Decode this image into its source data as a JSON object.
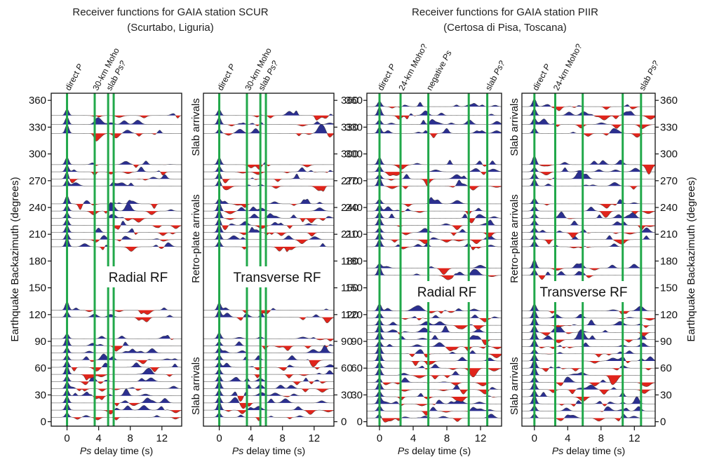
{
  "chart_data": [
    {
      "type": "area",
      "id": "scur-radial",
      "station_title": [
        "Receiver functions for GAIA station SCUR",
        "(Scurtabo, Liguria)"
      ],
      "component_label": "Radial RF",
      "xlabel": "delay time (s)",
      "xlabel_italic": "Ps",
      "ylabel": "Earthquake Backazimuth (degrees)",
      "xlim": [
        -2,
        14.5
      ],
      "ylim": [
        -5,
        368
      ],
      "xticks": [
        0,
        4,
        8,
        12
      ],
      "yticks": [
        0,
        30,
        60,
        90,
        120,
        150,
        180,
        210,
        240,
        270,
        300,
        330,
        360
      ],
      "marker_lines": [
        {
          "label_italic": "",
          "label": "direct ",
          "label_italic_after": "P",
          "x": 0
        },
        {
          "label_italic": "",
          "label": "30-km Moho",
          "label_italic_after": "",
          "x": 3.5
        },
        {
          "label_italic": "",
          "label": "slab ",
          "label_italic_after": "Ps?",
          "x": 5.2
        },
        {
          "label_italic": "",
          "label": "",
          "label_italic_after": "",
          "x": 5.9
        }
      ],
      "trace_backazimuths": [
        5,
        13,
        21,
        29,
        37,
        45,
        53,
        61,
        69,
        77,
        85,
        93,
        117,
        125,
        196,
        204,
        212,
        220,
        228,
        236,
        244,
        264,
        272,
        280,
        288,
        323,
        333,
        343
      ]
    },
    {
      "type": "area",
      "id": "scur-transverse",
      "component_label": "Transverse RF",
      "xlabel": "delay time (s)",
      "xlabel_italic": "Ps",
      "xlim": [
        -2,
        14.5
      ],
      "ylim": [
        -5,
        368
      ],
      "xticks": [
        0,
        4,
        8,
        12
      ],
      "yticks": [
        0,
        30,
        60,
        90,
        120,
        150,
        180,
        210,
        240,
        270,
        300,
        330,
        360
      ],
      "marker_lines": [
        {
          "label": "direct ",
          "label_italic_after": "P",
          "x": 0
        },
        {
          "label": "30-km Moho",
          "label_italic_after": "",
          "x": 3.5
        },
        {
          "label": "slab ",
          "label_italic_after": "Ps?",
          "x": 5.2
        },
        {
          "label": "",
          "label_italic_after": "",
          "x": 5.9
        }
      ],
      "side_labels": [
        {
          "text": "Slab arrivals",
          "y_range": [
            300,
            360
          ]
        },
        {
          "text": "Retro-plate arrivals",
          "y_range": [
            150,
            260
          ]
        },
        {
          "text": "Slab arrivals",
          "y_range": [
            0,
            80
          ]
        }
      ],
      "trace_backazimuths": [
        5,
        13,
        21,
        29,
        37,
        45,
        53,
        61,
        69,
        77,
        85,
        93,
        117,
        125,
        196,
        204,
        212,
        220,
        228,
        236,
        244,
        264,
        272,
        280,
        288,
        323,
        333,
        343
      ]
    },
    {
      "type": "area",
      "id": "piir-radial",
      "station_title": [
        "Receiver functions for GAIA station PIIR",
        "(Certosa di Pisa, Toscana)"
      ],
      "component_label": "Radial RF",
      "xlabel": "delay time (s)",
      "xlabel_italic": "Ps",
      "xlim": [
        -1.5,
        14.5
      ],
      "ylim": [
        -5,
        368
      ],
      "xticks": [
        0,
        4,
        8,
        12
      ],
      "yticks": [
        0,
        30,
        60,
        90,
        120,
        150,
        180,
        210,
        240,
        270,
        300,
        330,
        360
      ],
      "marker_lines": [
        {
          "label": "direct ",
          "label_italic_after": "P",
          "x": 0
        },
        {
          "label": "24-km Moho?",
          "label_italic_after": "",
          "x": 2.5
        },
        {
          "label": "negative ",
          "label_italic_after": "Ps",
          "x": 5.8
        },
        {
          "label": "",
          "label_italic_after": "",
          "x": 10.6
        },
        {
          "label": "slab ",
          "label_italic_after": "Ps?",
          "x": 12.8
        }
      ],
      "trace_backazimuths": [
        4,
        12,
        20,
        28,
        36,
        44,
        52,
        60,
        68,
        76,
        84,
        92,
        100,
        108,
        116,
        124,
        164,
        172,
        196,
        204,
        212,
        220,
        228,
        236,
        244,
        264,
        272,
        280,
        288,
        323,
        333,
        343,
        353
      ]
    },
    {
      "type": "area",
      "id": "piir-transverse",
      "component_label": "Transverse RF",
      "xlabel": "delay time (s)",
      "xlabel_italic": "Ps",
      "ylabel": "Earthquake Backazimuth (degrees)",
      "xlim": [
        -1.5,
        14.5
      ],
      "ylim": [
        -5,
        368
      ],
      "xticks": [
        0,
        4,
        8,
        12
      ],
      "yticks": [
        0,
        30,
        60,
        90,
        120,
        150,
        180,
        210,
        240,
        270,
        300,
        330,
        360
      ],
      "marker_lines": [
        {
          "label": "direct ",
          "label_italic_after": "P",
          "x": 0
        },
        {
          "label": "24-km Moho?",
          "label_italic_after": "",
          "x": 2.5
        },
        {
          "label": "",
          "label_italic_after": "",
          "x": 5.8
        },
        {
          "label": "",
          "label_italic_after": "",
          "x": 10.6
        },
        {
          "label": "slab ",
          "label_italic_after": "Ps?",
          "x": 12.8
        }
      ],
      "side_labels": [
        {
          "text": "Slab arrivals",
          "y_range": [
            300,
            360
          ]
        },
        {
          "text": "Retro-plate arrivals",
          "y_range": [
            150,
            260
          ]
        },
        {
          "text": "Slab arrivals",
          "y_range": [
            0,
            80
          ]
        }
      ],
      "trace_backazimuths": [
        4,
        12,
        20,
        28,
        36,
        44,
        52,
        60,
        68,
        76,
        84,
        92,
        100,
        108,
        116,
        124,
        164,
        172,
        196,
        204,
        212,
        220,
        228,
        236,
        244,
        264,
        272,
        280,
        288,
        323,
        333,
        343,
        353
      ]
    }
  ],
  "colors": {
    "positive": "#2b2f8f",
    "negative": "#e0241b",
    "marker": "#21a84a",
    "frame": "#111111"
  }
}
